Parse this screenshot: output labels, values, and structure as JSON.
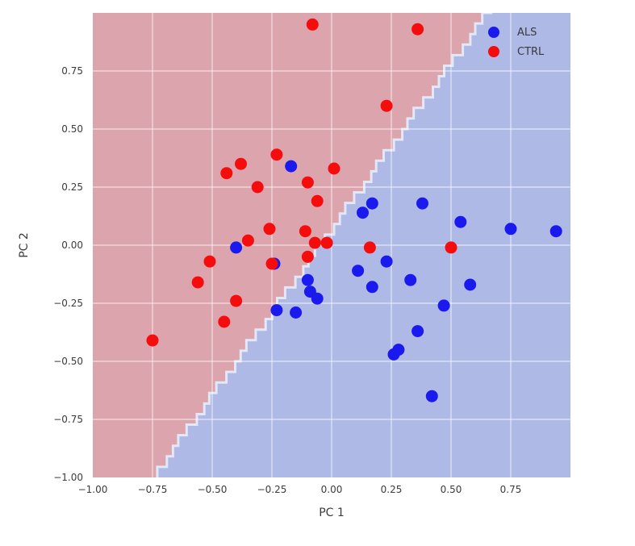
{
  "chart_data": {
    "type": "scatter",
    "title": "",
    "xlabel": "PC 1",
    "ylabel": "PC 2",
    "xlim": [
      -1.0,
      1.0
    ],
    "ylim": [
      -1.0,
      1.0
    ],
    "grid": true,
    "gridline_color": "rgba(255,255,255,0.55)",
    "x_ticks": [
      -1.0,
      -0.75,
      -0.5,
      -0.25,
      0.0,
      0.25,
      0.5,
      0.75
    ],
    "x_tick_labels": [
      "−1.00",
      "−0.75",
      "−0.50",
      "−0.25",
      "0.00",
      "0.25",
      "0.50",
      "0.75"
    ],
    "y_ticks": [
      0.75,
      0.5,
      0.25,
      0.0,
      -0.25,
      -0.5,
      -0.75,
      -1.0
    ],
    "y_tick_labels": [
      "0.75",
      "0.50",
      "0.25",
      "0.00",
      "−0.25",
      "−0.50",
      "−0.75",
      "−1.00"
    ],
    "legend": {
      "position": "upper-right",
      "entries": [
        {
          "label": "ALS",
          "color": "#1a1aef"
        },
        {
          "label": "CTRL",
          "color": "#f50d0d"
        }
      ]
    },
    "series": [
      {
        "name": "ALS",
        "marker_color": "#1a1aef",
        "points": [
          [
            -0.17,
            0.34
          ],
          [
            0.17,
            0.18
          ],
          [
            0.13,
            0.14
          ],
          [
            0.38,
            0.18
          ],
          [
            0.54,
            0.1
          ],
          [
            0.75,
            0.07
          ],
          [
            0.94,
            0.06
          ],
          [
            -0.4,
            -0.01
          ],
          [
            -0.24,
            -0.08
          ],
          [
            0.23,
            -0.07
          ],
          [
            0.11,
            -0.11
          ],
          [
            -0.1,
            -0.15
          ],
          [
            0.33,
            -0.15
          ],
          [
            0.17,
            -0.18
          ],
          [
            0.58,
            -0.17
          ],
          [
            -0.09,
            -0.2
          ],
          [
            -0.06,
            -0.23
          ],
          [
            -0.23,
            -0.28
          ],
          [
            -0.15,
            -0.29
          ],
          [
            0.47,
            -0.26
          ],
          [
            0.36,
            -0.37
          ],
          [
            0.28,
            -0.45
          ],
          [
            0.26,
            -0.47
          ],
          [
            0.42,
            -0.65
          ]
        ]
      },
      {
        "name": "CTRL",
        "marker_color": "#f50d0d",
        "points": [
          [
            -0.08,
            0.95
          ],
          [
            0.36,
            0.93
          ],
          [
            0.23,
            0.6
          ],
          [
            -0.44,
            0.31
          ],
          [
            -0.38,
            0.35
          ],
          [
            -0.31,
            0.25
          ],
          [
            -0.23,
            0.39
          ],
          [
            -0.1,
            0.27
          ],
          [
            -0.06,
            0.19
          ],
          [
            0.01,
            0.33
          ],
          [
            -0.26,
            0.07
          ],
          [
            -0.35,
            0.02
          ],
          [
            -0.11,
            0.06
          ],
          [
            -0.07,
            0.01
          ],
          [
            -0.02,
            0.01
          ],
          [
            -0.1,
            -0.05
          ],
          [
            0.16,
            -0.01
          ],
          [
            0.5,
            -0.01
          ],
          [
            -0.51,
            -0.07
          ],
          [
            -0.25,
            -0.08
          ],
          [
            -0.56,
            -0.16
          ],
          [
            -0.4,
            -0.24
          ],
          [
            -0.45,
            -0.33
          ],
          [
            -0.75,
            -0.41
          ]
        ]
      }
    ],
    "decision_regions": {
      "upper_left": {
        "class": "CTRL",
        "fill": "#dca4ac"
      },
      "lower_right": {
        "class": "ALS",
        "fill": "#aeb9e6"
      },
      "boundary_x_at_ymin": -0.73,
      "boundary_x_at_ymax": 0.67,
      "boundary_edge_color": "#e3e8f6"
    },
    "marker_radius_px": 7.5
  }
}
